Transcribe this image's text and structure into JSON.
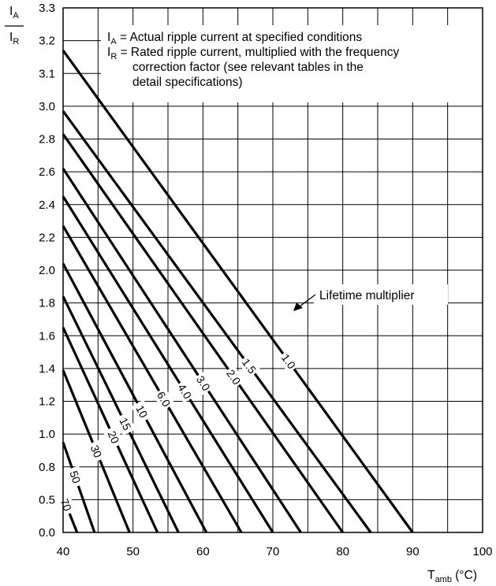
{
  "chart_data": {
    "type": "line",
    "title": "",
    "y_axis": {
      "label_numerator": "I",
      "label_numerator_sub": "A",
      "label_denominator": "I",
      "label_denominator_sub": "R",
      "ticks": [
        0.0,
        0.5,
        0.8,
        1.0,
        1.2,
        1.4,
        1.6,
        1.8,
        2.0,
        2.2,
        2.4,
        2.6,
        2.8,
        3.0,
        3.1,
        3.2,
        3.3
      ],
      "tick_labels": [
        "0.0",
        "0.5",
        "0.8",
        "1.0",
        "1.2",
        "1.4",
        "1.6",
        "1.8",
        "2.0",
        "2.2",
        "2.4",
        "2.6",
        "2.8",
        "3.0",
        "3.1",
        "3.2",
        "3.3"
      ]
    },
    "x_axis": {
      "label_main": "T",
      "label_sub": "amb",
      "label_unit": " (°C)",
      "ticks": [
        40,
        50,
        60,
        70,
        80,
        90,
        100
      ],
      "tick_labels": [
        "40",
        "50",
        "60",
        "70",
        "80",
        "90",
        "100"
      ],
      "xlim": [
        40,
        100
      ]
    },
    "legend_notes": [
      {
        "sym": "I",
        "sub": "A",
        "text": " = Actual ripple current at specified conditions"
      },
      {
        "sym": "I",
        "sub": "R",
        "text": " = Rated ripple current, multiplied with the frequency"
      },
      {
        "sym": "",
        "sub": "",
        "text": "correction factor (see relevant tables in the"
      },
      {
        "sym": "",
        "sub": "",
        "text": "detail specifications)"
      }
    ],
    "annotation": "Lifetime multiplier",
    "series": [
      {
        "name": "1.0",
        "x": [
          40,
          90
        ],
        "y": [
          3.17,
          0.0
        ]
      },
      {
        "name": "1.5",
        "x": [
          40,
          84
        ],
        "y": [
          2.97,
          0.0
        ]
      },
      {
        "name": "2.0",
        "x": [
          40,
          80
        ],
        "y": [
          2.83,
          0.0
        ]
      },
      {
        "name": "3.0",
        "x": [
          40,
          74
        ],
        "y": [
          2.62,
          0.0
        ]
      },
      {
        "name": "4.0",
        "x": [
          40,
          70
        ],
        "y": [
          2.45,
          0.0
        ]
      },
      {
        "name": "6.0",
        "x": [
          40,
          65.5
        ],
        "y": [
          2.27,
          0.0
        ]
      },
      {
        "name": "10",
        "x": [
          40,
          60.5
        ],
        "y": [
          2.04,
          0.0
        ]
      },
      {
        "name": "15",
        "x": [
          40,
          56.5
        ],
        "y": [
          1.84,
          0.0
        ]
      },
      {
        "name": "20",
        "x": [
          40,
          53.5
        ],
        "y": [
          1.65,
          0.0
        ]
      },
      {
        "name": "30",
        "x": [
          40,
          49.5
        ],
        "y": [
          1.39,
          0.0
        ]
      },
      {
        "name": "50",
        "x": [
          40,
          44.5
        ],
        "y": [
          0.95,
          0.0
        ]
      },
      {
        "name": "70",
        "x": [
          40,
          42
        ],
        "y": [
          0.52,
          0.0
        ]
      }
    ],
    "grid": true
  }
}
